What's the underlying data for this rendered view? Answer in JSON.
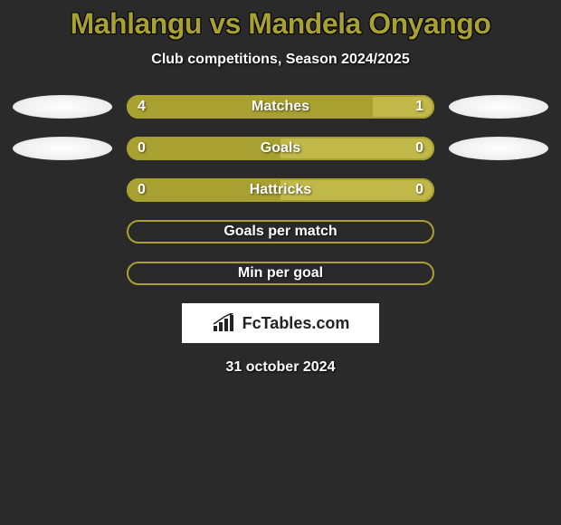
{
  "title": "Mahlangu vs Mandela Onyango",
  "subtitle": "Club competitions, Season 2024/2025",
  "colors": {
    "background": "#2a2a2a",
    "accent_title": "#a8a030",
    "bar_dark": "#a8a030",
    "bar_light": "#c0b848",
    "text_white": "#ffffff",
    "logo_bg": "#ffffff",
    "logo_text": "#222222"
  },
  "font": {
    "title_size": 32,
    "subtitle_size": 16,
    "bar_label_size": 16,
    "date_size": 16
  },
  "rows": [
    {
      "label": "Matches",
      "left_value": "4",
      "right_value": "1",
      "left_pct": 80,
      "right_pct": 20,
      "show_left_ellipse": true,
      "show_right_ellipse": true,
      "show_values": true,
      "filled": true
    },
    {
      "label": "Goals",
      "left_value": "0",
      "right_value": "0",
      "left_pct": 50,
      "right_pct": 50,
      "show_left_ellipse": true,
      "show_right_ellipse": true,
      "show_values": true,
      "filled": true
    },
    {
      "label": "Hattricks",
      "left_value": "0",
      "right_value": "0",
      "left_pct": 50,
      "right_pct": 50,
      "show_left_ellipse": false,
      "show_right_ellipse": false,
      "show_values": true,
      "filled": true
    },
    {
      "label": "Goals per match",
      "left_value": "",
      "right_value": "",
      "left_pct": 0,
      "right_pct": 0,
      "show_left_ellipse": false,
      "show_right_ellipse": false,
      "show_values": false,
      "filled": false
    },
    {
      "label": "Min per goal",
      "left_value": "",
      "right_value": "",
      "left_pct": 0,
      "right_pct": 0,
      "show_left_ellipse": false,
      "show_right_ellipse": false,
      "show_values": false,
      "filled": false
    }
  ],
  "logo_text": "FcTables.com",
  "date": "31 october 2024"
}
